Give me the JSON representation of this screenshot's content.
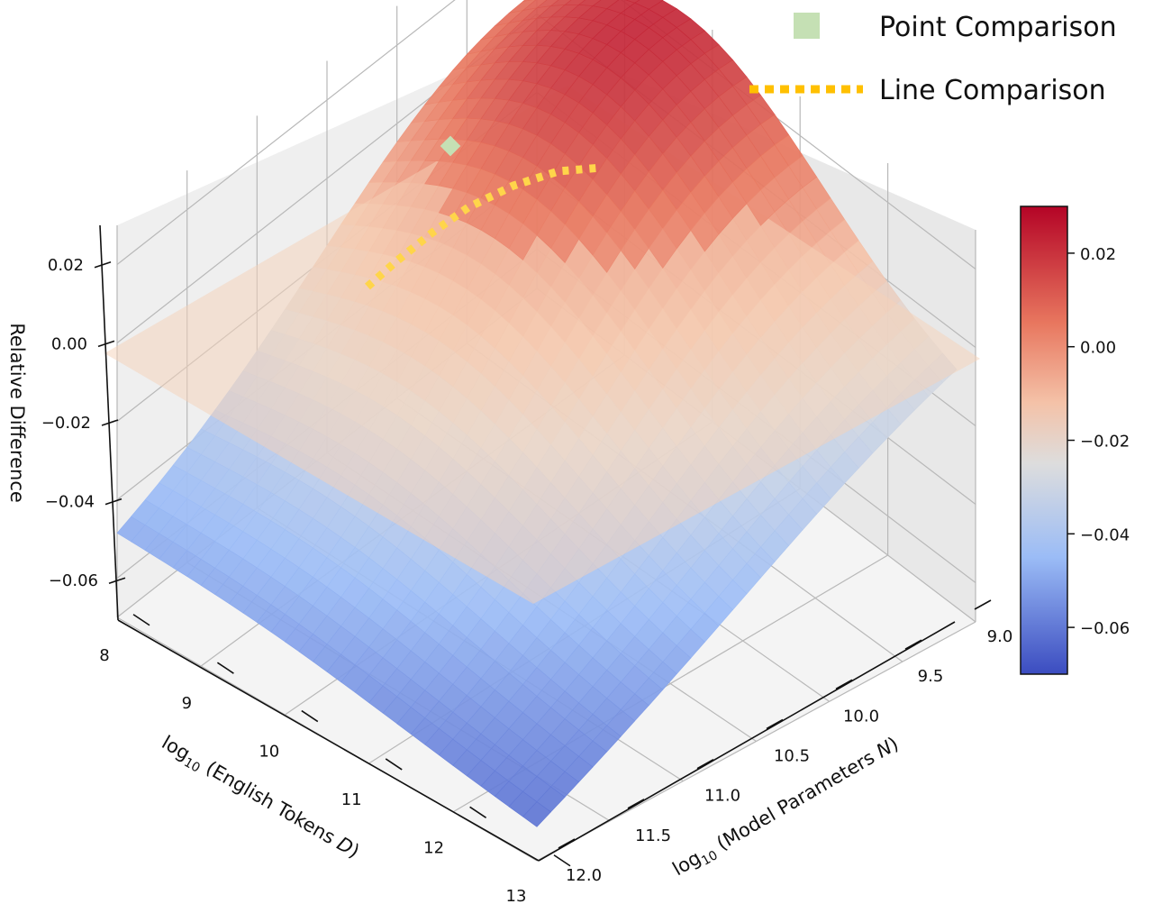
{
  "chart_data": {
    "type": "surface",
    "projection": "3d",
    "colormap": "coolwarm",
    "x_axis": {
      "label_prefix": "log",
      "label_sub": "10",
      "label_rest": " (English Tokens ",
      "label_var": "D",
      "label_end": ")",
      "range": [
        8,
        13
      ],
      "ticks": [
        "8",
        "9",
        "10",
        "11",
        "12",
        "13"
      ]
    },
    "y_axis": {
      "label_prefix": "log",
      "label_sub": "10",
      "label_rest": " (Model Parameters ",
      "label_var": "N",
      "label_end": ")",
      "range": [
        9.0,
        12.0
      ],
      "ticks": [
        "9.0",
        "9.5",
        "10.0",
        "10.5",
        "11.0",
        "11.5",
        "12.0"
      ]
    },
    "z_axis": {
      "label": "Relative Difference",
      "range": [
        -0.07,
        0.03
      ],
      "ticks": [
        "0.02",
        "0.00",
        "−0.02",
        "−0.04",
        "−0.06"
      ]
    },
    "surface_samples": {
      "description_axes": [
        "D",
        "N"
      ],
      "corners": [
        {
          "D": 8,
          "N": 9.0,
          "z": -0.002
        },
        {
          "D": 8,
          "N": 12.0,
          "z": -0.032
        },
        {
          "D": 13,
          "N": 9.0,
          "z": -0.013
        },
        {
          "D": 13,
          "N": 12.0,
          "z": -0.068
        }
      ],
      "peak": {
        "D": 9.7,
        "N": 9.4,
        "z": 0.029
      }
    },
    "zero_plane": {
      "z": 0.0
    },
    "point_comparison": {
      "D": 9.9,
      "N": 9.6,
      "z": 0.025
    },
    "line_comparison": [
      {
        "D": 9.3,
        "N": 10.9,
        "z": 0.015
      },
      {
        "D": 9.5,
        "N": 10.5,
        "z": 0.019
      },
      {
        "D": 9.7,
        "N": 10.1,
        "z": 0.022
      },
      {
        "D": 9.9,
        "N": 9.7,
        "z": 0.024
      },
      {
        "D": 10.1,
        "N": 9.3,
        "z": 0.025
      },
      {
        "D": 10.2,
        "N": 9.1,
        "z": 0.025
      }
    ],
    "legend": {
      "placement": "top-right",
      "entries": [
        {
          "label": "Point Comparison",
          "color": "#c5e0b4",
          "marker": "square"
        },
        {
          "label": "Line Comparison",
          "color": "#ffc000",
          "marker": "dotted-line"
        }
      ]
    },
    "colorbar": {
      "range": [
        -0.07,
        0.03
      ],
      "ticks": [
        "0.02",
        "0.00",
        "−0.02",
        "−0.04",
        "−0.06"
      ],
      "tick_values": [
        0.02,
        0.0,
        -0.02,
        -0.04,
        -0.06
      ]
    },
    "colors": {
      "high": "#b40426",
      "mid": "#dddddd",
      "low": "#3b4cc0",
      "pane": "#f2f2f2",
      "grid": "#b0b0b0"
    }
  }
}
